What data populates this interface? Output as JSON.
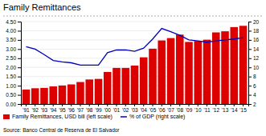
{
  "chart_data": {
    "type": "bar",
    "title": "Family Remittances",
    "categories": [
      "'91",
      "'92",
      "'93",
      "'94",
      "'95",
      "'96",
      "'97",
      "'98",
      "'99",
      "'00",
      "'01",
      "'02",
      "'03",
      "'04",
      "'05",
      "'06",
      "'07",
      "'08",
      "'09",
      "'10",
      "'11",
      "'12",
      "'13",
      "'14",
      "'15"
    ],
    "series": [
      {
        "name": "Family Remittances, USD bill (left scale)",
        "type": "bar",
        "color": "#dd0000",
        "values": [
          0.79,
          0.86,
          0.88,
          0.96,
          1.01,
          1.07,
          1.2,
          1.34,
          1.37,
          1.75,
          1.97,
          1.97,
          2.1,
          2.55,
          3.02,
          3.47,
          3.6,
          3.79,
          3.39,
          3.44,
          3.51,
          3.91,
          3.97,
          4.2,
          4.27
        ]
      },
      {
        "name": "% of GDP (right scale)",
        "type": "line",
        "color": "#0000bb",
        "axis": "y2",
        "values": [
          14.5,
          14.0,
          12.8,
          11.5,
          11.2,
          11.0,
          10.5,
          10.5,
          10.5,
          13.2,
          13.8,
          13.8,
          13.5,
          14.2,
          16.2,
          18.5,
          17.8,
          17.0,
          16.0,
          15.8,
          15.5,
          15.8,
          16.0,
          16.2,
          16.5
        ]
      }
    ],
    "ylim": [
      0,
      4.5
    ],
    "yticks": [
      {
        "value": 0.0,
        "label": "0.00"
      },
      {
        "value": 0.5,
        "label": "0.50"
      },
      {
        "value": 1.0,
        "label": "1.00"
      },
      {
        "value": 1.5,
        "label": "1.50"
      },
      {
        "value": 2.0,
        "label": "2.00"
      },
      {
        "value": 2.5,
        "label": "2.50"
      },
      {
        "value": 3.0,
        "label": "3.00"
      },
      {
        "value": 3.5,
        "label": "3.50"
      },
      {
        "value": 4.0,
        "label": "4.00"
      },
      {
        "value": 4.5,
        "label": "4.50"
      }
    ],
    "y2lim": [
      2,
      20
    ],
    "y2ticks": [
      2,
      4,
      6,
      8,
      10,
      12,
      14,
      16,
      18,
      20
    ],
    "grid": true,
    "legend": "bottom",
    "annotations": [
      "Source: Banco Central de Reserva de El Salvador"
    ]
  }
}
